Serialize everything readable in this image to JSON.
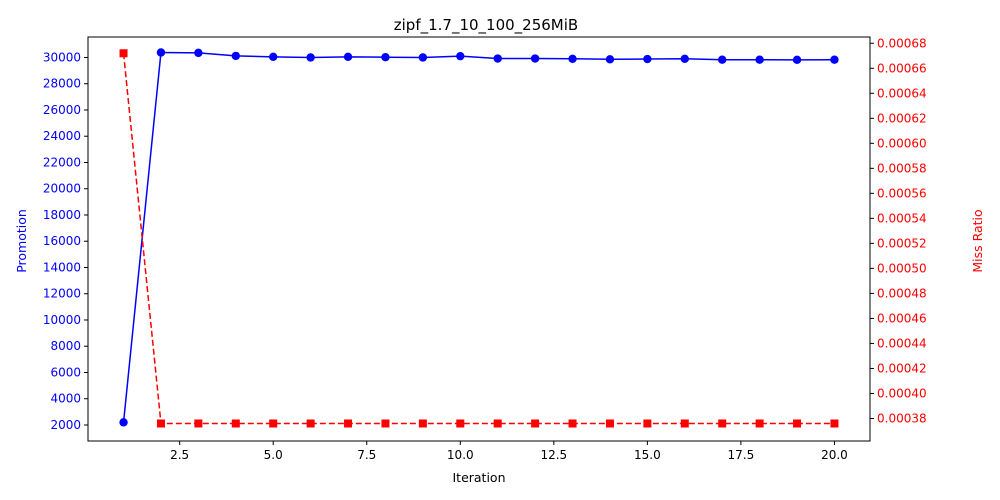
{
  "chart_data": {
    "type": "line",
    "title": "zipf_1.7_10_100_256MiB",
    "xlabel": "Iteration",
    "ylabel_left": "Promotion",
    "ylabel_right": "Miss Ratio",
    "xlim": [
      0.05,
      20.95
    ],
    "ylim_left": [
      780,
      31560
    ],
    "ylim_right": [
      0.000362,
      0.000685
    ],
    "x_ticks": [
      "2.5",
      "5.0",
      "7.5",
      "10.0",
      "12.5",
      "15.0",
      "17.5",
      "20.0"
    ],
    "y_left_ticks": [
      "2000",
      "4000",
      "6000",
      "8000",
      "10000",
      "12000",
      "14000",
      "16000",
      "18000",
      "20000",
      "22000",
      "24000",
      "26000",
      "28000",
      "30000"
    ],
    "y_right_ticks": [
      "0.00038",
      "0.00040",
      "0.00042",
      "0.00044",
      "0.00046",
      "0.00048",
      "0.00050",
      "0.00052",
      "0.00054",
      "0.00056",
      "0.00058",
      "0.00060",
      "0.00062",
      "0.00064",
      "0.00066",
      "0.00068"
    ],
    "grid": false,
    "series": [
      {
        "axis": "left",
        "color": "#0000ff",
        "style": "solid",
        "marker": "circle",
        "x": [
          1,
          2,
          3,
          4,
          5,
          6,
          7,
          8,
          9,
          10,
          11,
          12,
          13,
          14,
          15,
          16,
          17,
          18,
          19,
          20
        ],
        "values": [
          2200,
          30380,
          30350,
          30120,
          30050,
          30000,
          30050,
          30020,
          30000,
          30100,
          29920,
          29920,
          29900,
          29860,
          29880,
          29900,
          29830,
          29830,
          29820,
          29830
        ]
      },
      {
        "axis": "right",
        "color": "#ff0000",
        "style": "dashed",
        "marker": "square",
        "x": [
          1,
          2,
          3,
          4,
          5,
          6,
          7,
          8,
          9,
          10,
          11,
          12,
          13,
          14,
          15,
          16,
          17,
          18,
          19,
          20
        ],
        "values": [
          0.000672,
          0.000376,
          0.000376,
          0.000376,
          0.000376,
          0.000376,
          0.000376,
          0.000376,
          0.000376,
          0.000376,
          0.000376,
          0.000376,
          0.000376,
          0.000376,
          0.000376,
          0.000376,
          0.000376,
          0.000376,
          0.000376,
          0.000376
        ]
      }
    ]
  }
}
